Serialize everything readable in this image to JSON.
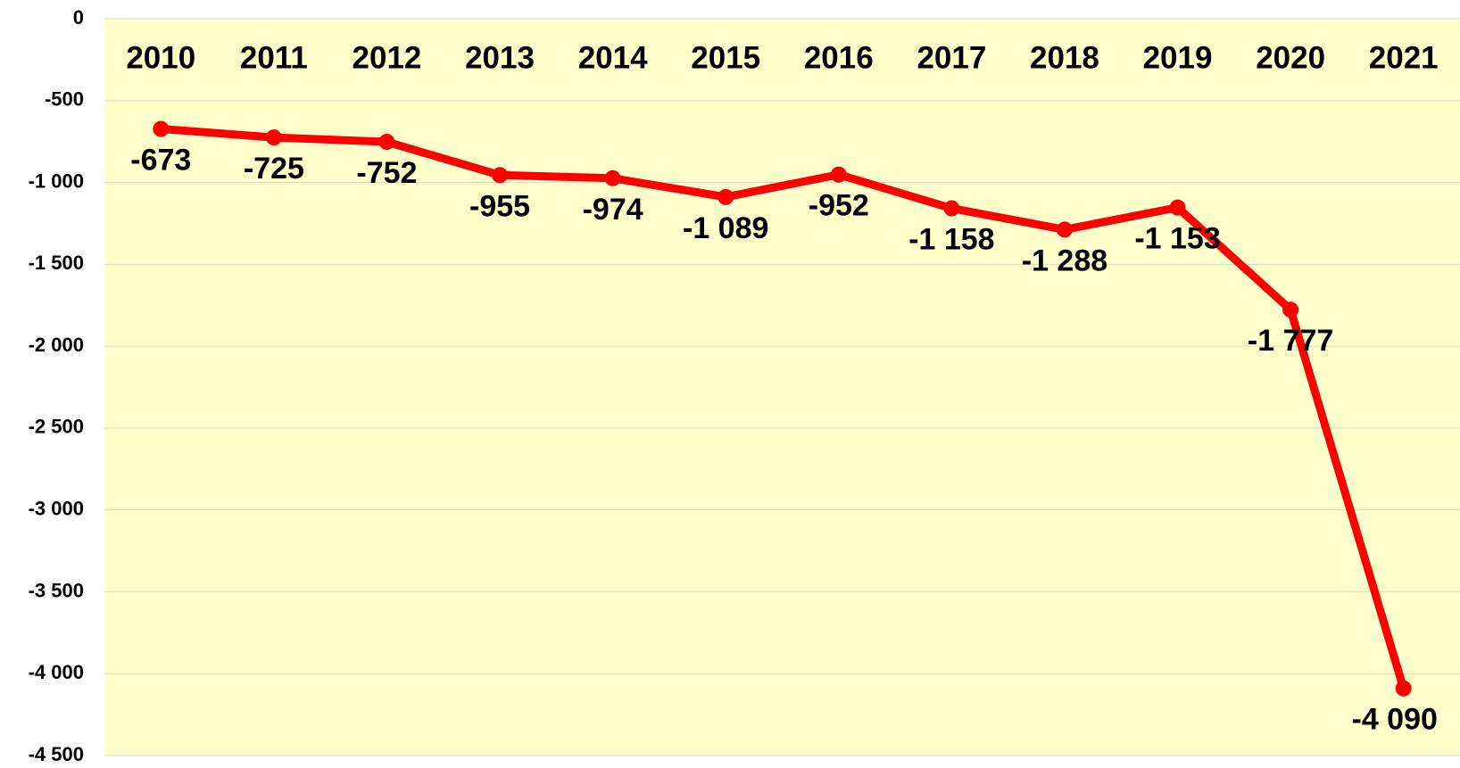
{
  "chart_data": {
    "type": "line",
    "categories": [
      "2010",
      "2011",
      "2012",
      "2013",
      "2014",
      "2015",
      "2016",
      "2017",
      "2018",
      "2019",
      "2020",
      "2021"
    ],
    "series": [
      {
        "color": "#ff0000",
        "values": [
          -673,
          -725,
          -752,
          -955,
          -974,
          -1089,
          -952,
          -1158,
          -1288,
          -1153,
          -1777,
          -4090
        ],
        "value_labels": [
          "-673",
          "-725",
          "-752",
          "-955",
          "-974",
          "-1 089",
          "-952",
          "-1 158",
          "-1 288",
          "-1 153",
          "-1 777",
          "-4 090"
        ]
      }
    ],
    "ylim": [
      -4500,
      0
    ],
    "yticks": [
      0,
      -500,
      {
        "value": -1000,
        "label": "-1 000"
      },
      {
        "value": -1500,
        "label": "-1 500"
      },
      {
        "value": -2000,
        "label": "-2 000"
      },
      {
        "value": -2500,
        "label": "-2 500"
      },
      {
        "value": -3000,
        "label": "-3 000"
      },
      {
        "value": -3500,
        "label": "-3 500"
      },
      {
        "value": -4000,
        "label": "-4 000"
      },
      {
        "value": -4500,
        "label": "-4 500"
      }
    ],
    "grid": true
  }
}
